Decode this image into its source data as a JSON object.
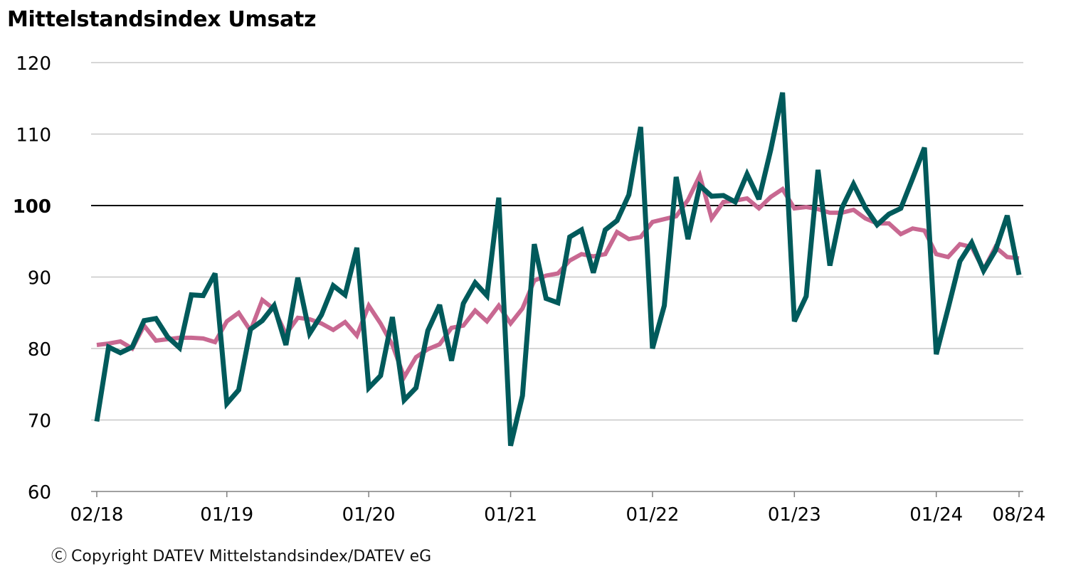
{
  "title": "Mittelstandsindex Umsatz",
  "copyright": "Copyright DATEV Mittelstandsindex/DATEV eG",
  "copyright_icon": "copyright-icon",
  "colors": {
    "pink": "#c86891",
    "teal": "#005a5b",
    "grid": "#c8c8c8",
    "reference": "#000000",
    "axis": "#808080"
  },
  "chart_data": {
    "type": "line",
    "title": "Mittelstandsindex Umsatz",
    "xlabel": "",
    "ylabel": "",
    "ylim": [
      60,
      120
    ],
    "yticks": [
      60,
      70,
      80,
      90,
      100,
      110,
      120
    ],
    "reference_line": 100,
    "grid": true,
    "legend": "none",
    "x_tick_labels": [
      {
        "i": 0,
        "label": "02/18"
      },
      {
        "i": 11,
        "label": "01/19"
      },
      {
        "i": 23,
        "label": "01/20"
      },
      {
        "i": 35,
        "label": "01/21"
      },
      {
        "i": 47,
        "label": "01/22"
      },
      {
        "i": 59,
        "label": "01/23"
      },
      {
        "i": 71,
        "label": "01/24"
      },
      {
        "i": 78,
        "label": "08/24"
      }
    ],
    "x_start": "02/18",
    "x_end": "08/24",
    "series": [
      {
        "color": "#c86891",
        "values": [
          80.5,
          80.7,
          81.0,
          80.0,
          83.2,
          81.1,
          81.3,
          81.5,
          81.5,
          81.4,
          80.9,
          83.8,
          85.0,
          82.5,
          86.8,
          85.5,
          82.0,
          84.3,
          84.1,
          83.5,
          82.6,
          83.7,
          81.8,
          86.0,
          83.5,
          80.5,
          76.0,
          78.8,
          79.9,
          80.6,
          82.9,
          83.2,
          85.3,
          83.8,
          86.0,
          83.5,
          85.6,
          89.5,
          90.2,
          90.5,
          92.3,
          93.2,
          92.9,
          93.2,
          96.3,
          95.3,
          95.6,
          97.7,
          98.1,
          98.5,
          100.8,
          104.2,
          98.2,
          100.5,
          100.7,
          101.0,
          99.6,
          101.2,
          102.3,
          99.6,
          99.8,
          99.5,
          99.0,
          99.0,
          99.4,
          98.2,
          97.5,
          97.5,
          96.0,
          96.8,
          96.5,
          93.2,
          92.8,
          94.6,
          94.2,
          91.0,
          94.2,
          92.8,
          92.6
        ]
      },
      {
        "color": "#005a5b",
        "values": [
          69.8,
          80.2,
          79.4,
          80.2,
          83.9,
          84.2,
          81.6,
          80.1,
          87.5,
          87.4,
          90.5,
          72.3,
          74.2,
          82.7,
          83.9,
          86.0,
          80.5,
          89.9,
          82.1,
          84.7,
          88.8,
          87.5,
          94.1,
          74.5,
          76.2,
          84.4,
          72.8,
          74.5,
          82.5,
          86.1,
          78.3,
          86.3,
          89.2,
          87.4,
          101.1,
          66.4,
          73.4,
          94.6,
          87.0,
          86.4,
          95.6,
          96.6,
          90.6,
          96.6,
          97.9,
          101.5,
          111.0,
          80.0,
          86.0,
          104.0,
          95.3,
          102.8,
          101.3,
          101.4,
          100.5,
          104.4,
          100.9,
          107.8,
          115.8,
          83.8,
          87.3,
          105.0,
          91.6,
          99.6,
          103.0,
          99.7,
          97.3,
          98.8,
          99.6,
          103.8,
          108.1,
          79.2,
          85.6,
          92.2,
          94.8,
          90.9,
          93.7,
          98.6,
          90.3
        ]
      }
    ]
  }
}
